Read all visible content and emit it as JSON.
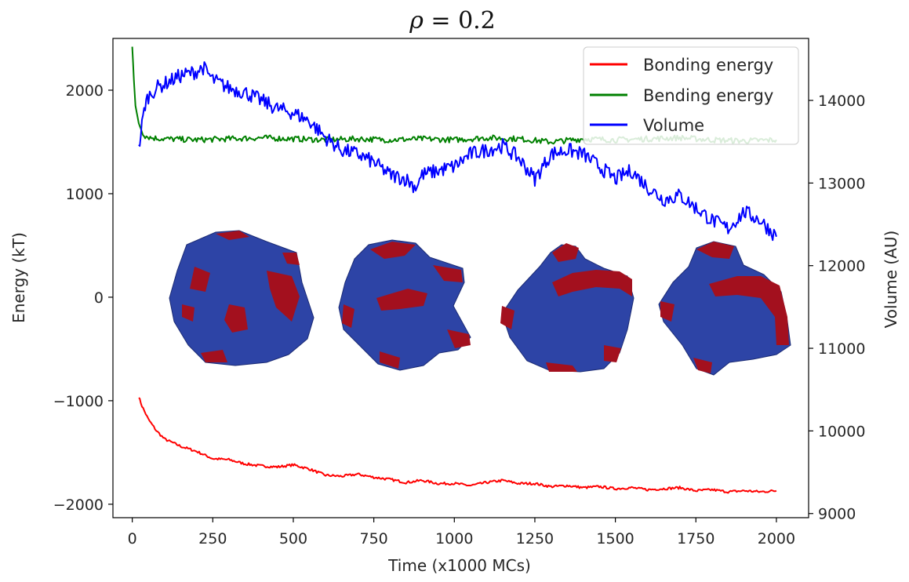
{
  "chart_data": {
    "type": "line",
    "title_var": "ρ",
    "title_op": " = ",
    "title_val": "0.2",
    "xlabel": "Time (x1000 MCs)",
    "ylabel_left": "Energy (kT)",
    "ylabel_right": "Volume (AU)",
    "xlim": [
      -60,
      2100
    ],
    "ylim_left": [
      -2130,
      2500
    ],
    "ylim_right": [
      8950,
      14750
    ],
    "x_ticks": [
      0,
      250,
      500,
      750,
      1000,
      1250,
      1500,
      1750,
      2000
    ],
    "x_tick_labels": [
      "0",
      "250",
      "500",
      "750",
      "1000",
      "1250",
      "1500",
      "1750",
      "2000"
    ],
    "y_left_ticks": [
      -2000,
      -1000,
      0,
      1000,
      2000
    ],
    "y_left_tick_labels": [
      "−2000",
      "−1000",
      "0",
      "1000",
      "2000"
    ],
    "y_right_ticks": [
      9000,
      10000,
      11000,
      12000,
      13000,
      14000
    ],
    "y_right_tick_labels": [
      "9000",
      "10000",
      "11000",
      "12000",
      "13000",
      "14000"
    ],
    "legend": {
      "position": "top-right",
      "entries": [
        "Bonding energy",
        "Bending energy",
        "Volume"
      ]
    },
    "series": [
      {
        "name": "Bonding energy",
        "color": "#ff0000",
        "axis": "left",
        "x": [
          20,
          30,
          50,
          75,
          100,
          150,
          200,
          250,
          300,
          350,
          400,
          450,
          500,
          550,
          600,
          650,
          700,
          750,
          800,
          850,
          900,
          950,
          1000,
          1050,
          1100,
          1150,
          1200,
          1250,
          1300,
          1350,
          1400,
          1450,
          1500,
          1550,
          1600,
          1650,
          1700,
          1750,
          1800,
          1850,
          1900,
          1950,
          2000
        ],
        "values": [
          -960,
          -1050,
          -1180,
          -1290,
          -1370,
          -1440,
          -1490,
          -1560,
          -1570,
          -1610,
          -1630,
          -1640,
          -1620,
          -1660,
          -1720,
          -1730,
          -1710,
          -1740,
          -1760,
          -1790,
          -1770,
          -1800,
          -1800,
          -1820,
          -1790,
          -1770,
          -1800,
          -1800,
          -1830,
          -1820,
          -1840,
          -1830,
          -1850,
          -1840,
          -1860,
          -1850,
          -1840,
          -1870,
          -1860,
          -1880,
          -1870,
          -1880,
          -1870
        ]
      },
      {
        "name": "Bending energy",
        "color": "#008000",
        "axis": "left",
        "x": [
          0,
          5,
          10,
          20,
          30,
          40,
          60,
          100,
          200,
          300,
          400,
          500,
          600,
          700,
          800,
          900,
          1000,
          1100,
          1200,
          1300,
          1400,
          1500,
          1600,
          1700,
          1800,
          1900,
          2000
        ],
        "values": [
          2420,
          2100,
          1850,
          1680,
          1600,
          1560,
          1540,
          1530,
          1520,
          1530,
          1540,
          1530,
          1520,
          1530,
          1520,
          1530,
          1520,
          1540,
          1530,
          1500,
          1530,
          1520,
          1530,
          1540,
          1520,
          1510,
          1520
        ]
      },
      {
        "name": "Volume",
        "color": "#0000ff",
        "axis": "right",
        "x": [
          20,
          30,
          40,
          50,
          75,
          100,
          150,
          200,
          220,
          250,
          300,
          350,
          400,
          450,
          500,
          550,
          600,
          650,
          700,
          750,
          800,
          850,
          880,
          900,
          950,
          1000,
          1050,
          1100,
          1150,
          1200,
          1250,
          1300,
          1350,
          1400,
          1450,
          1500,
          1550,
          1600,
          1650,
          1700,
          1750,
          1800,
          1850,
          1900,
          1950,
          2000
        ],
        "values": [
          13400,
          13700,
          13950,
          14050,
          14150,
          14200,
          14300,
          14350,
          14400,
          14250,
          14150,
          14100,
          14000,
          13900,
          13850,
          13750,
          13550,
          13400,
          13350,
          13250,
          13100,
          13050,
          12950,
          13100,
          13150,
          13200,
          13350,
          13400,
          13450,
          13300,
          13050,
          13350,
          13400,
          13350,
          13200,
          13050,
          13150,
          12950,
          12800,
          12850,
          12700,
          12550,
          12450,
          12650,
          12550,
          12350
        ]
      }
    ]
  }
}
